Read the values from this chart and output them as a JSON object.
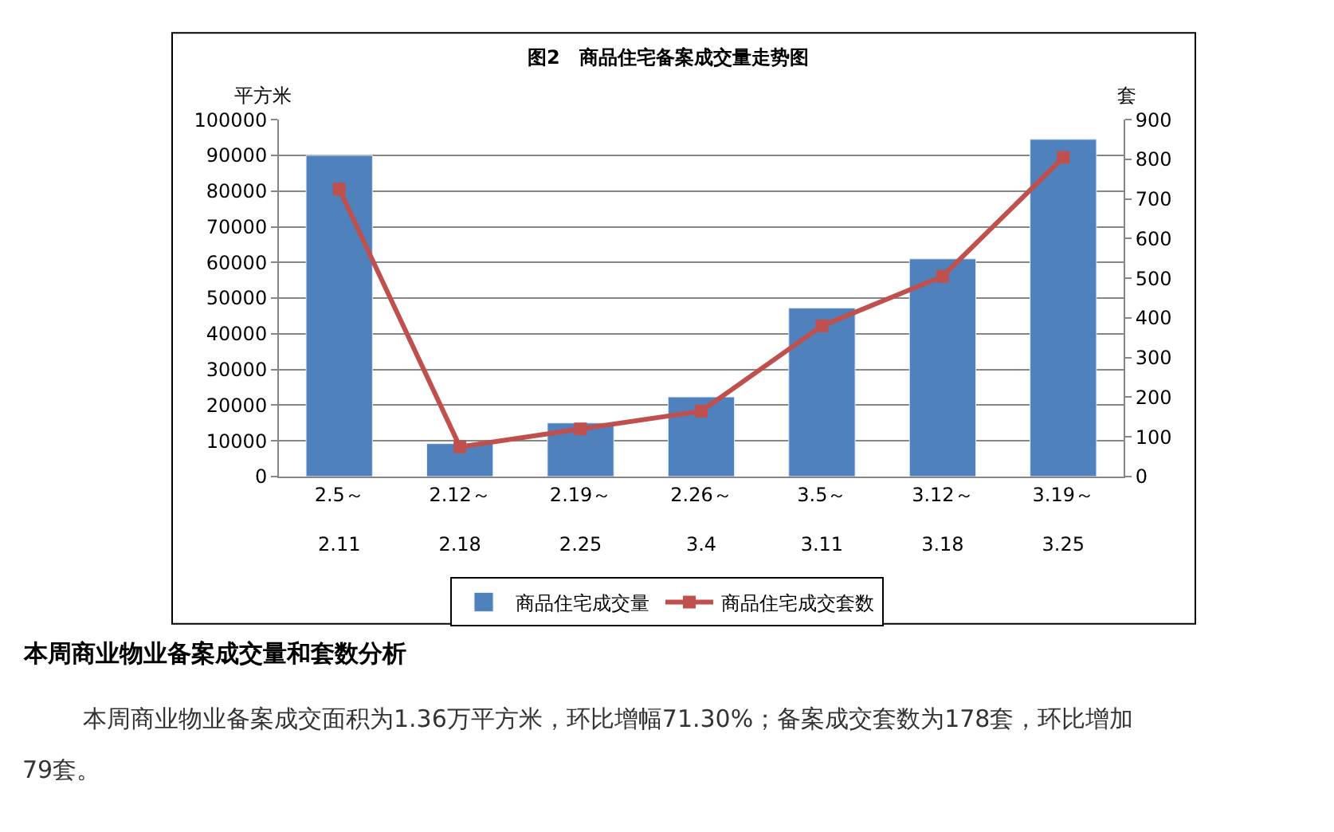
{
  "chart_data": {
    "type": "bar",
    "title": "图2　商品住宅备案成交量走势图",
    "ylabel": "平方米",
    "y2label": "套",
    "categories": [
      "2.5～\n\n2.11",
      "2.12～\n\n2.18",
      "2.19～\n\n2.25",
      "2.26～\n\n3.4",
      "3.5～\n\n3.11",
      "3.12～\n\n3.18",
      "3.19～\n\n3.25"
    ],
    "series": [
      {
        "name": "商品住宅成交量",
        "color": "#4f81bd",
        "values": [
          90000,
          9200,
          15000,
          22300,
          47200,
          61000,
          94500
        ]
      },
      {
        "name": "商品住宅成交套数",
        "type": "line",
        "axis": "y2",
        "color": "#c0504d",
        "marker": "square",
        "values": [
          725,
          75,
          120,
          165,
          380,
          505,
          805
        ]
      }
    ],
    "ylim": [
      0,
      100000
    ],
    "yticks": [
      0,
      10000,
      20000,
      30000,
      40000,
      50000,
      60000,
      70000,
      80000,
      90000,
      100000
    ],
    "y2lim": [
      0,
      900
    ],
    "y2ticks": [
      0,
      100,
      200,
      300,
      400,
      500,
      600,
      700,
      800,
      900
    ],
    "grid": "y",
    "legend": "bottom",
    "annotations": [
      "本周商业物业备案成交量和套数分析",
      "本周商业物业备案成交面积为1.36万平方米，环比增幅71.30%；备案成交套数为178套，环比增加\n79套。"
    ]
  }
}
